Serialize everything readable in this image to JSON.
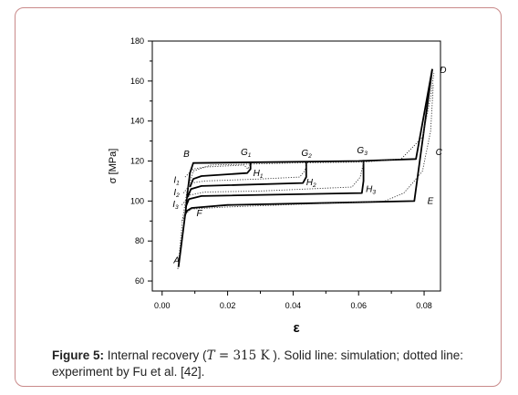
{
  "chart_data": {
    "type": "line",
    "xlabel": "ε",
    "ylabel": "σ  [MPa]",
    "xlim": [
      -0.003,
      0.085
    ],
    "ylim": [
      55,
      180
    ],
    "x_ticks": [
      "0.00",
      "0.02",
      "0.04",
      "0.06",
      "0.08"
    ],
    "x_tick_values": [
      0.0,
      0.02,
      0.04,
      0.06,
      0.08
    ],
    "y_ticks": [
      "60",
      "80",
      "100",
      "120",
      "140",
      "160",
      "180"
    ],
    "y_tick_values": [
      60,
      80,
      100,
      120,
      140,
      160,
      180
    ],
    "grid": false,
    "series": [
      {
        "style": "solid",
        "color": "#000000",
        "paths": [
          {
            "x": [
              0.005,
              0.0072,
              0.0078,
              0.0085,
              0.0095,
              0.06,
              0.0775,
              0.0825
            ],
            "y": [
              67,
              95,
              105,
              114,
              119,
              120,
              121,
              166
            ]
          },
          {
            "x": [
              0.0085,
              0.0095,
              0.012,
              0.026,
              0.027,
              0.027
            ],
            "y": [
              107,
              111,
              112.5,
              114,
              116,
              119.5
            ]
          },
          {
            "x": [
              0.0078,
              0.0088,
              0.012,
              0.043,
              0.044,
              0.044
            ],
            "y": [
              102,
              106,
              107.5,
              109,
              112,
              120
            ]
          },
          {
            "x": [
              0.0072,
              0.0082,
              0.012,
              0.061,
              0.0615,
              0.0615
            ],
            "y": [
              97,
              101,
              102.5,
              104,
              110,
              120.5
            ]
          },
          {
            "x": [
              0.0068,
              0.0075,
              0.009,
              0.02,
              0.077,
              0.0825
            ],
            "y": [
              92,
              95,
              96.5,
              98,
              100,
              166
            ]
          }
        ]
      },
      {
        "style": "dotted",
        "color": "#333333",
        "paths": [
          {
            "x": [
              0.0048,
              0.0062,
              0.0075,
              0.0095,
              0.015,
              0.04,
              0.062,
              0.073,
              0.0795,
              0.082,
              0.083
            ],
            "y": [
              66,
              90,
              104,
              115,
              118,
              119,
              119.5,
              121,
              132,
              152,
              164
            ]
          },
          {
            "x": [
              0.007,
              0.0095,
              0.013,
              0.025,
              0.0262,
              0.027
            ],
            "y": [
              112,
              116,
              117,
              118,
              116,
              118.5
            ]
          },
          {
            "x": [
              0.0065,
              0.009,
              0.013,
              0.03,
              0.042,
              0.0435,
              0.0443
            ],
            "y": [
              104,
              109,
              110,
              111,
              112,
              115,
              119
            ]
          },
          {
            "x": [
              0.006,
              0.0085,
              0.013,
              0.03,
              0.058,
              0.0605,
              0.0615
            ],
            "y": [
              98,
              103,
              104.5,
              105,
              107,
              112,
              119
            ]
          },
          {
            "x": [
              0.006,
              0.0075,
              0.009,
              0.02,
              0.068,
              0.0738,
              0.0765,
              0.0795,
              0.082,
              0.0828
            ],
            "y": [
              90,
              94,
              96,
              97,
              100,
              104,
              109,
              115,
              135,
              158
            ]
          }
        ]
      }
    ],
    "annotations": [
      {
        "text": "A",
        "x": 0.0035,
        "y": 69
      },
      {
        "text": "B",
        "x": 0.0065,
        "y": 122
      },
      {
        "text": "C",
        "x": 0.0835,
        "y": 123
      },
      {
        "text": "D",
        "x": 0.0848,
        "y": 164
      },
      {
        "text": "E",
        "x": 0.081,
        "y": 98.5
      },
      {
        "text": "F",
        "x": 0.0105,
        "y": 92.5
      },
      {
        "text": "G",
        "sub": "1",
        "x": 0.024,
        "y": 123
      },
      {
        "text": "G",
        "sub": "2",
        "x": 0.0425,
        "y": 122.5
      },
      {
        "text": "G",
        "sub": "3",
        "x": 0.0595,
        "y": 124
      },
      {
        "text": "H",
        "sub": "1",
        "x": 0.0278,
        "y": 112.5
      },
      {
        "text": "H",
        "sub": "2",
        "x": 0.044,
        "y": 108
      },
      {
        "text": "H",
        "sub": "3",
        "x": 0.0622,
        "y": 104.5
      },
      {
        "text": "I",
        "sub": "1",
        "x": 0.0035,
        "y": 109
      },
      {
        "text": "I",
        "sub": "2",
        "x": 0.0035,
        "y": 103
      },
      {
        "text": "I",
        "sub": "3",
        "x": 0.0032,
        "y": 97
      }
    ]
  },
  "caption": {
    "label": "Figure 5:",
    "text_before": " Internal recovery (",
    "math_var": "T",
    "math_rest": " = 315 K",
    "text_after": "  ). Solid line: simulation; dotted line: experiment by Fu et al. [42]."
  }
}
